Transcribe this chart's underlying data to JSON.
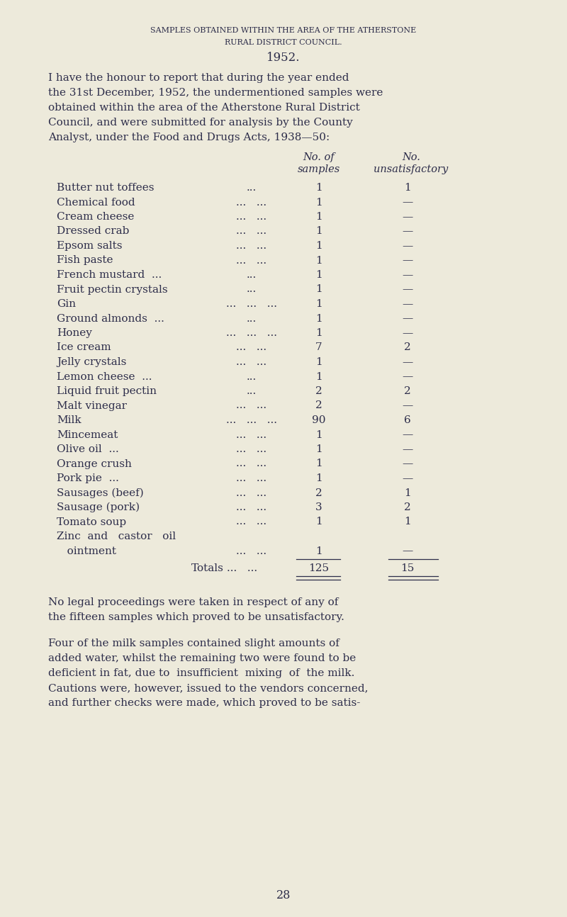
{
  "bg_color": "#edeadb",
  "text_color": "#2d2d4a",
  "title_line1": "Samples obtained within the area of the Atherstone",
  "title_line2": "Rural District Council.",
  "title_line3": "1952.",
  "intro_para": "I have the honour to report that during the year ended the 31st December, 1952, the undermentioned samples were obtained within the area of the Atherstone Rural District Council, and were submitted for analysis by the County Analyst, under the Food and Drugs Acts, 1938—50:",
  "items": [
    [
      "Butter nut toffees",
      "...",
      1,
      1
    ],
    [
      "Chemical food",
      "...   ...",
      1,
      0
    ],
    [
      "Cream cheese",
      "...   ...",
      1,
      0
    ],
    [
      "Dressed crab",
      "...   ...",
      1,
      0
    ],
    [
      "Epsom salts",
      "...   ...",
      1,
      0
    ],
    [
      "Fish paste",
      "...   ...",
      1,
      0
    ],
    [
      "French mustard",
      "...   ...",
      1,
      0
    ],
    [
      "Fruit pectin crystals",
      "...",
      1,
      0
    ],
    [
      "Gin",
      "...   ...   ...",
      1,
      0
    ],
    [
      "Ground almonds ...",
      "...",
      1,
      0
    ],
    [
      "Honey",
      "...   ...   ...",
      1,
      0
    ],
    [
      "Ice cream",
      "...   ...",
      7,
      2
    ],
    [
      "Jelly crystals",
      "...   ...",
      1,
      0
    ],
    [
      "Lemon cheese",
      "...   ...",
      1,
      0
    ],
    [
      "Liquid fruit pectin",
      "...",
      2,
      2
    ],
    [
      "Malt vinegar",
      "...   ...",
      2,
      0
    ],
    [
      "Milk",
      "...   ...   ...",
      90,
      6
    ],
    [
      "Mincemeat",
      "...   ...",
      1,
      0
    ],
    [
      "Olive oil  ...",
      "...   ...",
      1,
      0
    ],
    [
      "Orange crush",
      "...   ...",
      1,
      0
    ],
    [
      "Pork pie  ...",
      "...   ...",
      1,
      0
    ],
    [
      "Sausages (beef)",
      "...   ...",
      2,
      1
    ],
    [
      "Sausage (pork)",
      "...   ...",
      3,
      2
    ],
    [
      "Tomato soup",
      "...   ...",
      1,
      1
    ],
    [
      "Zinc and castor   oil",
      null,
      0,
      0
    ],
    [
      "   ointment",
      "...   ...",
      1,
      0
    ]
  ],
  "totals_label": "Totals",
  "totals_samples": 125,
  "totals_unsatisfactory": 15,
  "para1": "No legal proceedings were taken in respect of any of the fifteen samples which proved to be unsatisfactory.",
  "para2_indent": "Four of the milk samples contained slight amounts of added water, whilst the remaining two were found to be deficient in fat, due to insufficient mixing of the milk. Cautions were, however, issued to the vendors concerned, and further checks were made, which proved to be satis-",
  "page_number": "28",
  "figsize": [
    8.0,
    12.94
  ],
  "dpi": 100
}
